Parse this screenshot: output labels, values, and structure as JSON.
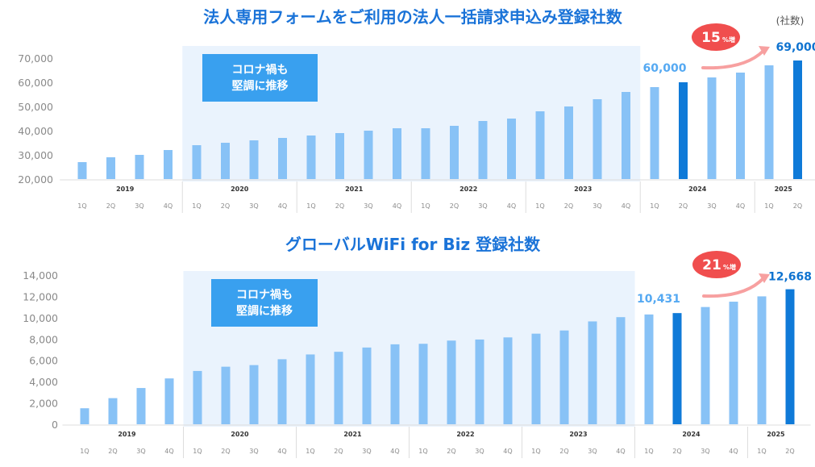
{
  "colors": {
    "title": "#1a73d8",
    "bar": "#88c2f6",
    "bar_highlight": "#0f7ad8",
    "covid_band": "#eaf3fd",
    "callout_bg": "#39a0ef",
    "growth_bubble": "#f04e4e",
    "growth_arrow": "#f7a0a0",
    "label_light": "#55a9f2",
    "label_dark": "#0f73d0",
    "axis_line": "#dddddd"
  },
  "unit_label": "(社数)",
  "chart_data": [
    {
      "type": "bar",
      "title": "法人専用フォームをご利用の法人一括請求申込み登録社数",
      "quarters": [
        "1Q",
        "2Q",
        "3Q",
        "4Q",
        "1Q",
        "2Q",
        "3Q",
        "4Q",
        "1Q",
        "2Q",
        "3Q",
        "4Q",
        "1Q",
        "2Q",
        "3Q",
        "4Q",
        "1Q",
        "2Q",
        "3Q",
        "4Q",
        "1Q",
        "2Q",
        "3Q",
        "4Q",
        "1Q",
        "2Q"
      ],
      "years": [
        {
          "label": "2019",
          "start": 0,
          "count": 4
        },
        {
          "label": "2020",
          "start": 4,
          "count": 4
        },
        {
          "label": "2021",
          "start": 8,
          "count": 4
        },
        {
          "label": "2022",
          "start": 12,
          "count": 4
        },
        {
          "label": "2023",
          "start": 16,
          "count": 4
        },
        {
          "label": "2024",
          "start": 20,
          "count": 4
        },
        {
          "label": "2025",
          "start": 24,
          "count": 2
        }
      ],
      "values": [
        27000,
        29000,
        30000,
        32000,
        34000,
        35000,
        36000,
        37000,
        38000,
        39000,
        40000,
        41000,
        41000,
        42000,
        44000,
        45000,
        48000,
        50000,
        53000,
        56000,
        58000,
        60000,
        62000,
        64000,
        67000,
        69000
      ],
      "highlight_indices": [
        21,
        25
      ],
      "ylim": [
        20000,
        70000
      ],
      "yticks": [
        "20,000",
        "30,000",
        "40,000",
        "50,000",
        "60,000",
        "70,000"
      ],
      "ytick_values": [
        20000,
        30000,
        40000,
        50000,
        60000,
        70000
      ],
      "covid_range": [
        4,
        19
      ],
      "covid_callout": [
        "コロナ禍も",
        "堅調に推移"
      ],
      "value_labels": [
        {
          "index": 21,
          "text": "60,000",
          "style": "light"
        },
        {
          "index": 25,
          "text": "69,000",
          "style": "dark"
        }
      ],
      "growth": {
        "number": "15",
        "suffix": "%増"
      }
    },
    {
      "type": "bar",
      "title": "グローバルWiFi for Biz 登録社数",
      "quarters": [
        "1Q",
        "2Q",
        "3Q",
        "4Q",
        "1Q",
        "2Q",
        "3Q",
        "4Q",
        "1Q",
        "2Q",
        "3Q",
        "4Q",
        "1Q",
        "2Q",
        "3Q",
        "4Q",
        "1Q",
        "2Q",
        "3Q",
        "4Q",
        "1Q",
        "2Q",
        "3Q",
        "4Q",
        "1Q",
        "2Q"
      ],
      "years": [
        {
          "label": "2019",
          "start": 0,
          "count": 4
        },
        {
          "label": "2020",
          "start": 4,
          "count": 4
        },
        {
          "label": "2021",
          "start": 8,
          "count": 4
        },
        {
          "label": "2022",
          "start": 12,
          "count": 4
        },
        {
          "label": "2023",
          "start": 16,
          "count": 4
        },
        {
          "label": "2024",
          "start": 20,
          "count": 4
        },
        {
          "label": "2025",
          "start": 24,
          "count": 2
        }
      ],
      "values": [
        1500,
        2450,
        3400,
        4300,
        5000,
        5400,
        5550,
        6100,
        6550,
        6800,
        7200,
        7500,
        7550,
        7850,
        7950,
        8150,
        8500,
        8800,
        9650,
        10050,
        10300,
        10431,
        11000,
        11500,
        12000,
        12668
      ],
      "highlight_indices": [
        21,
        25
      ],
      "ylim": [
        0,
        14000
      ],
      "yticks": [
        "0",
        "2,000",
        "4,000",
        "6,000",
        "8,000",
        "10,000",
        "12,000",
        "14,000"
      ],
      "ytick_values": [
        0,
        2000,
        4000,
        6000,
        8000,
        10000,
        12000,
        14000
      ],
      "covid_range": [
        4,
        19
      ],
      "covid_callout": [
        "コロナ禍も",
        "堅調に推移"
      ],
      "value_labels": [
        {
          "index": 21,
          "text": "10,431",
          "style": "light"
        },
        {
          "index": 25,
          "text": "12,668",
          "style": "dark"
        }
      ],
      "growth": {
        "number": "21",
        "suffix": "%増"
      }
    }
  ]
}
